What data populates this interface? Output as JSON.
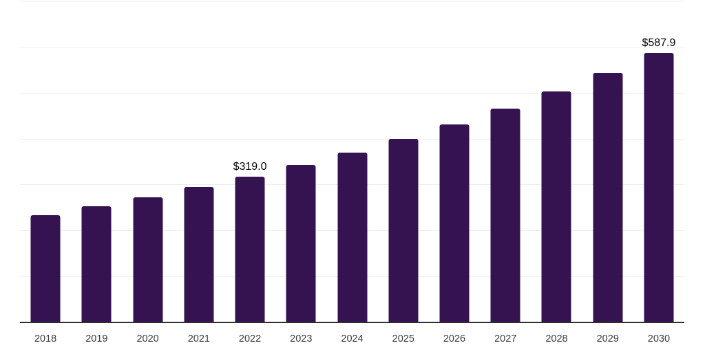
{
  "chart_data": {
    "type": "bar",
    "title": "",
    "xlabel": "",
    "ylabel": "",
    "categories": [
      "2018",
      "2019",
      "2020",
      "2021",
      "2022",
      "2023",
      "2024",
      "2025",
      "2026",
      "2027",
      "2028",
      "2029",
      "2030"
    ],
    "values": [
      235.0,
      253.7,
      273.9,
      295.6,
      319.0,
      344.3,
      371.7,
      401.2,
      433.0,
      467.4,
      504.5,
      544.6,
      587.9
    ],
    "value_labels": [
      "",
      "",
      "",
      "",
      "$319.0",
      "",
      "",
      "",
      "",
      "",
      "",
      "",
      "$587.9"
    ],
    "labeled_points": [
      {
        "category": "2022",
        "label": "$319.0",
        "value": 319.0
      },
      {
        "category": "2030",
        "label": "$587.9",
        "value": 587.9
      }
    ],
    "ylim": [
      0,
      700
    ],
    "gridline_interval": 100,
    "grid": true,
    "legend": false,
    "y_tick_labels_visible": false,
    "colors": {
      "bar": "#351351",
      "axis": "#2e2e2e",
      "gridline": "#ededed",
      "tick_label": "#3c3c3c",
      "value_label": "#050505",
      "background": "#ffffff"
    }
  }
}
